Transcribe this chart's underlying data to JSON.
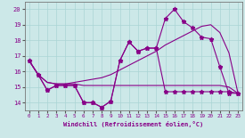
{
  "xlabel": "Windchill (Refroidissement éolien,°C)",
  "background_color": "#cce8e8",
  "grid_color": "#aad4d4",
  "line_color": "#880088",
  "x_hours": [
    0,
    1,
    2,
    3,
    4,
    5,
    6,
    7,
    8,
    9,
    10,
    11,
    12,
    13,
    14,
    15,
    16,
    17,
    18,
    19,
    20,
    21,
    22,
    23
  ],
  "windchill_line": [
    16.7,
    15.8,
    14.8,
    15.1,
    15.1,
    15.1,
    14.0,
    14.0,
    13.7,
    14.1,
    16.7,
    17.9,
    17.3,
    17.5,
    17.5,
    19.4,
    20.0,
    19.2,
    18.8,
    18.2,
    18.1,
    16.3,
    14.6,
    14.6
  ],
  "temp_line": [
    16.7,
    15.8,
    14.8,
    15.1,
    15.1,
    15.1,
    14.0,
    14.0,
    13.7,
    14.1,
    16.7,
    17.9,
    17.3,
    17.5,
    17.5,
    14.7,
    14.7,
    14.7,
    14.7,
    14.7,
    14.7,
    14.7,
    14.7,
    14.6
  ],
  "trend_line1": [
    16.7,
    15.8,
    15.3,
    15.2,
    15.2,
    15.3,
    15.4,
    15.5,
    15.6,
    15.8,
    16.1,
    16.4,
    16.7,
    17.0,
    17.3,
    17.7,
    18.0,
    18.3,
    18.6,
    18.9,
    19.0,
    18.5,
    17.2,
    14.6
  ],
  "trend_line2": [
    16.7,
    15.8,
    15.3,
    15.2,
    15.2,
    15.2,
    15.1,
    15.1,
    15.1,
    15.1,
    15.1,
    15.1,
    15.1,
    15.1,
    15.1,
    15.1,
    15.1,
    15.1,
    15.1,
    15.1,
    15.1,
    15.1,
    15.0,
    14.6
  ],
  "ylim": [
    13.5,
    20.5
  ],
  "yticks": [
    14,
    15,
    16,
    17,
    18,
    19,
    20
  ],
  "xticks": [
    0,
    1,
    2,
    3,
    4,
    5,
    6,
    7,
    8,
    9,
    10,
    11,
    12,
    13,
    14,
    15,
    16,
    17,
    18,
    19,
    20,
    21,
    22,
    23
  ]
}
